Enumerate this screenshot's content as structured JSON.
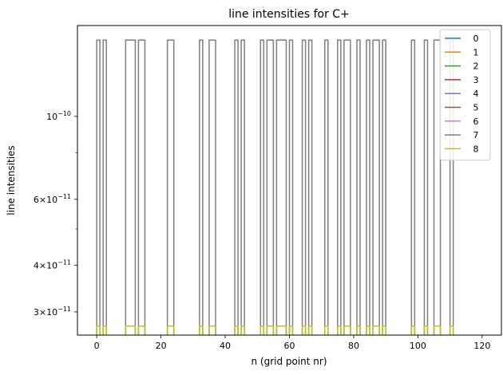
{
  "chart_data": {
    "type": "line",
    "title": "line intensities for C+",
    "xlabel": "n (grid point nr)",
    "ylabel": "line intensities",
    "yscale": "log",
    "xlim": [
      -6,
      126
    ],
    "ylim": [
      2.6e-11,
      1.75e-10
    ],
    "grid": false,
    "legend_position": "top-right",
    "x_ticks": [
      {
        "value": 0,
        "label": "0"
      },
      {
        "value": 20,
        "label": "20"
      },
      {
        "value": 40,
        "label": "40"
      },
      {
        "value": 60,
        "label": "60"
      },
      {
        "value": 80,
        "label": "80"
      },
      {
        "value": 100,
        "label": "100"
      },
      {
        "value": 120,
        "label": "120"
      }
    ],
    "y_major_ticks": [
      {
        "value": 1e-10,
        "base": "10",
        "exp": "−10"
      },
      {
        "value": 6e-11,
        "mant": "6",
        "base": "10",
        "exp": "−11"
      },
      {
        "value": 4e-11,
        "mant": "4",
        "base": "10",
        "exp": "−11"
      },
      {
        "value": 3e-11,
        "mant": "3",
        "base": "10",
        "exp": "−11"
      }
    ],
    "y_minor_ticks": [
      8e-11,
      5e-11
    ],
    "step_high": 1.6e-10,
    "step_low": 2.75e-11,
    "upper_trace_series": "7",
    "lower_trace_series": "8",
    "step_intervals": [
      [
        0,
        1
      ],
      [
        2,
        3
      ],
      [
        9,
        12
      ],
      [
        13,
        15
      ],
      [
        22,
        24
      ],
      [
        32,
        33
      ],
      [
        35,
        37
      ],
      [
        43,
        44
      ],
      [
        45,
        46
      ],
      [
        51,
        52
      ],
      [
        53,
        55
      ],
      [
        56,
        59
      ],
      [
        60,
        61
      ],
      [
        64,
        65
      ],
      [
        66,
        67
      ],
      [
        71,
        72
      ],
      [
        75,
        76
      ],
      [
        77,
        79
      ],
      [
        81,
        82
      ],
      [
        84,
        85
      ],
      [
        86,
        88
      ],
      [
        89,
        90
      ],
      [
        98,
        99
      ],
      [
        102,
        103
      ],
      [
        105,
        107
      ],
      [
        110,
        111
      ]
    ],
    "series": [
      {
        "name": "0",
        "color": "#1f77b4"
      },
      {
        "name": "1",
        "color": "#ff7f0e"
      },
      {
        "name": "2",
        "color": "#2ca02c"
      },
      {
        "name": "3",
        "color": "#d62728"
      },
      {
        "name": "4",
        "color": "#9467bd"
      },
      {
        "name": "5",
        "color": "#8c564b"
      },
      {
        "name": "6",
        "color": "#e377c2"
      },
      {
        "name": "7",
        "color": "#7f7f7f"
      },
      {
        "name": "8",
        "color": "#bcbd22"
      }
    ]
  }
}
